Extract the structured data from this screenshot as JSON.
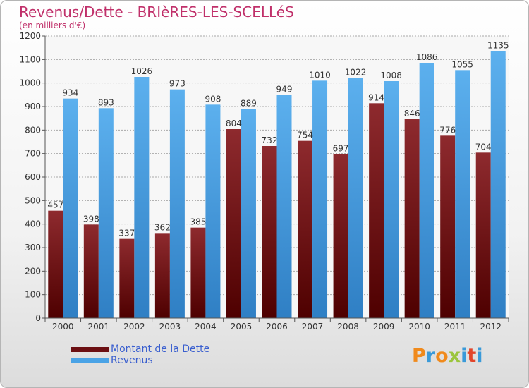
{
  "header": {
    "title": "Revenus/Dette - BRIèRES-LES-SCELLéS",
    "subtitle": "(en milliers d'€)"
  },
  "logo": {
    "text": "Proxiti",
    "letters": [
      {
        "ch": "P",
        "color": "#f08a1c"
      },
      {
        "ch": "r",
        "color": "#3a9ad9"
      },
      {
        "ch": "o",
        "color": "#f08a1c"
      },
      {
        "ch": "x",
        "color": "#9bc53d"
      },
      {
        "ch": "i",
        "color": "#3a9ad9"
      },
      {
        "ch": "t",
        "color": "#e2452b"
      },
      {
        "ch": "i",
        "color": "#3a9ad9"
      }
    ]
  },
  "chart_data": {
    "type": "bar",
    "title": "Revenus/Dette - BRIèRES-LES-SCELLéS",
    "subtitle": "(en milliers d'€)",
    "categories": [
      "2000",
      "2001",
      "2002",
      "2003",
      "2004",
      "2005",
      "2006",
      "2007",
      "2008",
      "2009",
      "2010",
      "2011",
      "2012"
    ],
    "series": [
      {
        "name": "Montant de la Dette",
        "color": "#6b0f12",
        "values": [
          457,
          398,
          337,
          362,
          385,
          804,
          732,
          754,
          697,
          914,
          846,
          776,
          704
        ]
      },
      {
        "name": "Revenus",
        "color": "#4aa3e6",
        "values": [
          934,
          893,
          1026,
          973,
          908,
          889,
          949,
          1010,
          1022,
          1008,
          1086,
          1055,
          1135
        ]
      }
    ],
    "ylim": [
      0,
      1200
    ],
    "yticks": [
      0,
      100,
      200,
      300,
      400,
      500,
      600,
      700,
      800,
      900,
      1000,
      1100,
      1200
    ],
    "grid": true,
    "legend_position": "bottom-left"
  }
}
